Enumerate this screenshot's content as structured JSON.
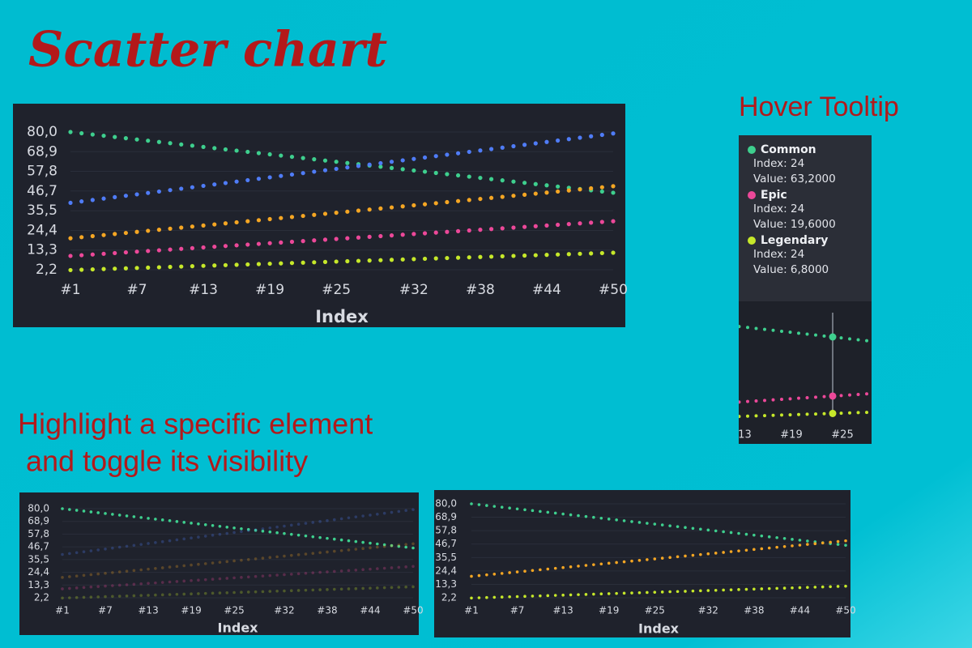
{
  "heading": "Scatter chart",
  "tooltip_heading": "Hover Tooltip",
  "highlight_heading": [
    "Highlight a specific element",
    " and toggle its visibility"
  ],
  "tooltip": {
    "entries": [
      {
        "name": "Common",
        "index": "Index: 24",
        "value": "Value: 63,2000"
      },
      {
        "name": "Epic",
        "index": "Index: 24",
        "value": "Value: 19,6000"
      },
      {
        "name": "Legendary",
        "index": "Index: 24",
        "value": "Value: 6,8000"
      }
    ]
  },
  "chart_data": {
    "type": "scatter",
    "x_label": "Index",
    "categories": [
      "#1",
      null,
      null,
      null,
      null,
      null,
      "#7",
      null,
      null,
      null,
      null,
      null,
      "#13",
      null,
      null,
      null,
      null,
      null,
      "#19",
      null,
      null,
      null,
      null,
      null,
      "#25",
      null,
      null,
      null,
      null,
      null,
      null,
      "#32",
      null,
      null,
      null,
      null,
      null,
      "#38",
      null,
      null,
      null,
      null,
      null,
      "#44",
      null,
      null,
      null,
      null,
      null,
      "#50"
    ],
    "ylim": [
      2.2,
      80
    ],
    "yticks": [
      {
        "value": 2.2,
        "label": "2,2"
      },
      {
        "value": 13.3,
        "label": "13,3"
      },
      {
        "value": 24.4,
        "label": "24,4"
      },
      {
        "value": 35.5,
        "label": "35,5"
      },
      {
        "value": 46.7,
        "label": "46,7"
      },
      {
        "value": 57.8,
        "label": "57,8"
      },
      {
        "value": 68.9,
        "label": "68,9"
      },
      {
        "value": 80,
        "label": "80,0"
      }
    ],
    "grid": true,
    "series": [
      {
        "name": "Common",
        "color": "#3ecf8e",
        "values": [
          80,
          79.3,
          78.6,
          77.9,
          77.2,
          76.5,
          75.8,
          75.1,
          74.4,
          73.7,
          73,
          72.3,
          71.6,
          70.9,
          70.2,
          69.5,
          68.8,
          68.1,
          67.4,
          66.7,
          66,
          65.3,
          64.6,
          63.9,
          63.2,
          62.5,
          61.8,
          61.1,
          60.4,
          59.7,
          59,
          58.3,
          57.6,
          56.9,
          56.2,
          55.5,
          54.8,
          54.1,
          53.4,
          52.7,
          52,
          51.3,
          50.6,
          49.9,
          49.2,
          48.5,
          47.8,
          47.1,
          46.4,
          45.7
        ]
      },
      {
        "color": "#4f7cf7",
        "values": [
          40,
          40.8,
          41.6,
          42.4,
          43.2,
          44,
          44.8,
          45.6,
          46.4,
          47.2,
          48,
          48.8,
          49.6,
          50.4,
          51.2,
          52,
          52.8,
          53.6,
          54.4,
          55.2,
          56,
          56.8,
          57.6,
          58.4,
          59.2,
          60,
          60.8,
          61.6,
          62.4,
          63.2,
          64,
          64.8,
          65.6,
          66.4,
          67.2,
          68,
          68.8,
          69.6,
          70.4,
          71.2,
          72,
          72.8,
          73.6,
          74.4,
          75.2,
          76,
          76.8,
          77.6,
          78.4,
          79.2
        ]
      },
      {
        "color": "#f5a623",
        "values": [
          20,
          20.6,
          21.2,
          21.8,
          22.4,
          23,
          23.6,
          24.2,
          24.8,
          25.4,
          26,
          26.6,
          27.2,
          27.8,
          28.4,
          29,
          29.6,
          30.2,
          30.8,
          31.4,
          32,
          32.6,
          33.2,
          33.8,
          34.4,
          35,
          35.6,
          36.2,
          36.8,
          37.4,
          38,
          38.6,
          39.2,
          39.8,
          40.4,
          41,
          41.6,
          42.2,
          42.8,
          43.4,
          44,
          44.6,
          45.2,
          45.8,
          46.4,
          47,
          47.6,
          48.2,
          48.8,
          49.4
        ]
      },
      {
        "name": "Epic",
        "color": "#ec4899",
        "values": [
          10,
          10.4,
          10.8,
          11.2,
          11.6,
          12,
          12.4,
          12.8,
          13.2,
          13.6,
          14,
          14.4,
          14.8,
          15.2,
          15.6,
          16,
          16.4,
          16.8,
          17.2,
          17.6,
          18,
          18.4,
          18.8,
          19.2,
          19.6,
          20,
          20.4,
          20.8,
          21.2,
          21.6,
          22,
          22.4,
          22.8,
          23.2,
          23.6,
          24,
          24.4,
          24.8,
          25.2,
          25.6,
          26,
          26.4,
          26.8,
          27.2,
          27.6,
          28,
          28.4,
          28.8,
          29.2,
          29.6
        ]
      },
      {
        "name": "Legendary",
        "color": "#c6e82a",
        "values": [
          2,
          2.2,
          2.4,
          2.6,
          2.8,
          3,
          3.2,
          3.4,
          3.6,
          3.8,
          4,
          4.2,
          4.4,
          4.6,
          4.8,
          5,
          5.2,
          5.4,
          5.6,
          5.8,
          6,
          6.2,
          6.4,
          6.6,
          6.8,
          7,
          7.2,
          7.4,
          7.6,
          7.8,
          8,
          8.2,
          8.4,
          8.6,
          8.8,
          9,
          9.2,
          9.4,
          9.6,
          9.8,
          10,
          10.2,
          10.4,
          10.6,
          10.8,
          11,
          11.2,
          11.4,
          11.6,
          11.8
        ]
      }
    ]
  }
}
